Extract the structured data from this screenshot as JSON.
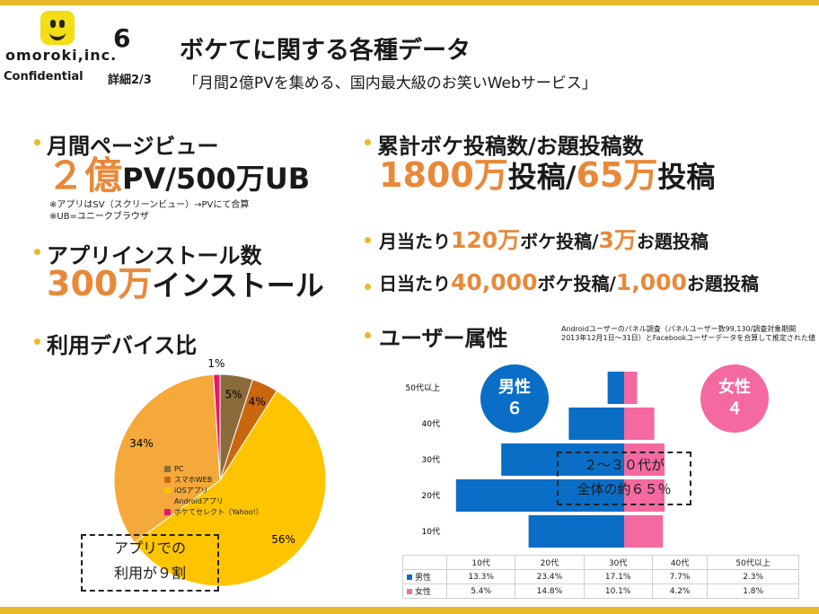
{
  "header": {
    "logo_text": "omoroki,inc.",
    "page_number": "6",
    "confidential": "Confidential",
    "detail_page": "詳細2/3",
    "title": "ボケてに関する各種データ",
    "subtitle": "「月間2億PVを集める、国内最大級のお笑いWebサービス」"
  },
  "pageviews": {
    "heading": "月間ページビュー",
    "value_highlight": "２億",
    "value_rest": "PV/500万UB",
    "note1": "※アプリはSV（スクリーンビュー）→PVにて合算",
    "note2": "※UB=ユニークブラウザ"
  },
  "installs": {
    "heading": "アプリインストール数",
    "value_highlight": "300万",
    "value_rest": "インストール"
  },
  "posts": {
    "heading": "累計ボケ投稿数/お題投稿数",
    "bokes_value": "1800万",
    "bokes_unit": "投稿/",
    "odai_value": "65万",
    "odai_unit": "投稿"
  },
  "monthly": {
    "prefix": "月当たり",
    "boke_value": "120万",
    "boke_unit": "ボケ投稿/",
    "odai_value": "3万",
    "odai_unit": "お題投稿"
  },
  "daily": {
    "prefix": "日当たり",
    "boke_value": "40,000",
    "boke_unit": "ボケ投稿/",
    "odai_value": "1,000",
    "odai_unit": "お題投稿"
  },
  "device": {
    "heading": "利用デバイス比",
    "callout_line1": "アプリでの",
    "callout_line2": "利用が９割"
  },
  "users": {
    "heading": "ユーザー属性",
    "source_note_line1": "Androidユーザーのパネル調査（パネルユーザー数99,130/調査対象期間",
    "source_note_line2": "2013年12月1日〜31日）とFacebookユーザーデータを合算して推定された値",
    "male_label": "男性",
    "male_value": "６",
    "female_label": "女性",
    "female_value": "４",
    "callout_line1": "２～３０代が",
    "callout_line2": "全体の約６５％",
    "table_headers": [
      "",
      "10代",
      "20代",
      "30代",
      "40代",
      "50代以上"
    ],
    "table_rows": [
      {
        "label": "男性",
        "cells": [
          "13.3%",
          "23.4%",
          "17.1%",
          "7.7%",
          "2.3%"
        ]
      },
      {
        "label": "女性",
        "cells": [
          "5.4%",
          "14.8%",
          "10.1%",
          "4.2%",
          "1.8%"
        ]
      }
    ]
  },
  "colors": {
    "accent": "#e8b92a",
    "orange_text": "#e8893a",
    "male": "#0a6ec6",
    "female": "#f46aa0",
    "pc": "#8a6b3c",
    "smartphone_web": "#c9660e",
    "ios": "#ffc400",
    "android": "#f4a93a",
    "bokete_select": "#e8166e"
  },
  "chart_data": [
    {
      "type": "pie",
      "title": "",
      "slices": [
        {
          "label": "PC",
          "value": 5,
          "color": "#8a6b3c"
        },
        {
          "label": "スマホWEB",
          "value": 4,
          "color": "#c9660e"
        },
        {
          "label": "iOSアプリ",
          "value": 56,
          "color": "#ffc400"
        },
        {
          "label": "Androidアプリ",
          "value": 34,
          "color": "#f4a93a"
        },
        {
          "label": "ボケてセレクト（Yahoo!）",
          "value": 1,
          "color": "#e8166e"
        }
      ],
      "data_labels": [
        "5%",
        "4%",
        "56%",
        "34%",
        "1%"
      ],
      "legend_position": "center-left"
    },
    {
      "type": "bar",
      "orientation": "horizontal-population-pyramid",
      "categories": [
        "50代以上",
        "40代",
        "30代",
        "20代",
        "10代"
      ],
      "series": [
        {
          "name": "男性",
          "values": [
            2.3,
            7.7,
            17.1,
            23.4,
            13.3
          ]
        },
        {
          "name": "女性",
          "values": [
            1.8,
            4.2,
            10.1,
            14.8,
            5.4
          ]
        }
      ],
      "unit": "%"
    }
  ]
}
